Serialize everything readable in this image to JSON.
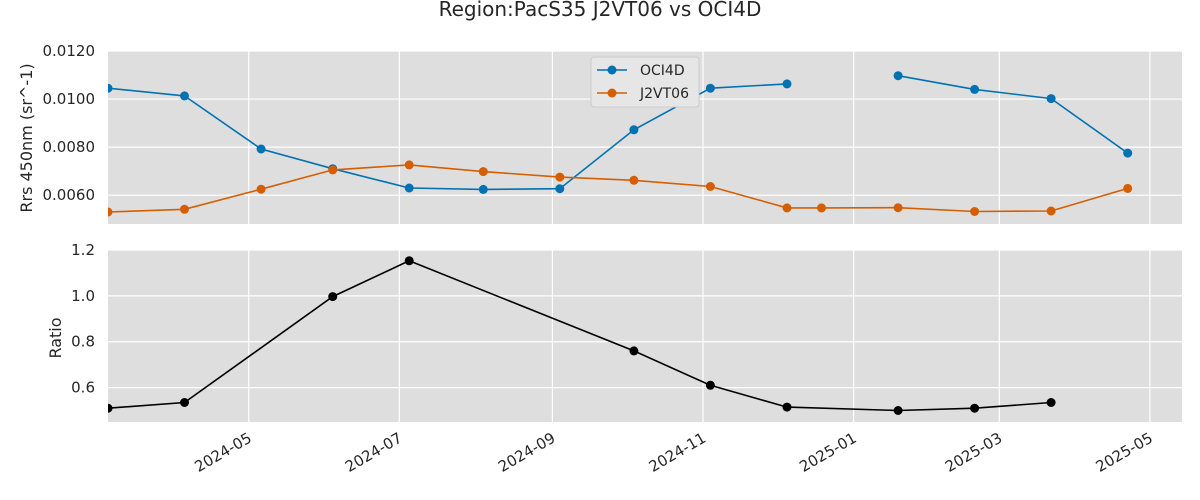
{
  "chart_data": {
    "type": "line",
    "title": "Region:PacS35 J2VT06 vs OCI4D",
    "x_tick_labels": [
      "2024-05",
      "2024-07",
      "2024-09",
      "2024-11",
      "2025-01",
      "2025-03",
      "2025-05"
    ],
    "panels": [
      {
        "ylabel": "Rrs 450nm (sr^-1)",
        "ylim": [
          0.0048,
          0.012
        ],
        "yticks": [
          "0.0060",
          "0.0080",
          "0.0100",
          "0.0120"
        ],
        "legend_position": "top-center",
        "series": [
          {
            "name": "OCI4D",
            "color": "#0072B2",
            "points": [
              [
                "2024-03-05",
                0.01045
              ],
              [
                "2024-04-05",
                0.01013
              ],
              [
                "2024-05-06",
                0.00792
              ],
              [
                "2024-06-04",
                0.0071
              ],
              [
                "2024-07-05",
                0.0063
              ],
              [
                "2024-08-04",
                0.00624
              ],
              [
                "2024-09-04",
                0.00627
              ],
              [
                "2024-10-04",
                0.00872
              ],
              [
                "2024-11-04",
                0.01045
              ],
              [
                "2024-12-05",
                0.01063
              ],
              [
                "2025-01-19",
                0.01097
              ],
              [
                "2025-02-19",
                0.0104
              ],
              [
                "2025-03-22",
                0.01002
              ],
              [
                "2025-04-22",
                0.00775
              ]
            ],
            "segment_breaks_after": [
              "2024-12-05"
            ]
          },
          {
            "name": "J2VT06",
            "color": "#D55E00",
            "points": [
              [
                "2024-03-05",
                0.0053
              ],
              [
                "2024-04-05",
                0.00541
              ],
              [
                "2024-05-06",
                0.00625
              ],
              [
                "2024-06-04",
                0.00705
              ],
              [
                "2024-07-05",
                0.00726
              ],
              [
                "2024-08-04",
                0.00698
              ],
              [
                "2024-09-04",
                0.00675
              ],
              [
                "2024-10-04",
                0.00662
              ],
              [
                "2024-11-04",
                0.00636
              ],
              [
                "2024-12-05",
                0.00547
              ],
              [
                "2024-12-19",
                0.00547
              ],
              [
                "2025-01-19",
                0.00548
              ],
              [
                "2025-02-19",
                0.00532
              ],
              [
                "2025-03-22",
                0.00534
              ],
              [
                "2025-04-22",
                0.00628
              ]
            ]
          }
        ]
      },
      {
        "ylabel": "Ratio",
        "ylim": [
          0.45,
          1.2
        ],
        "yticks": [
          "0.6",
          "0.8",
          "1.0",
          "1.2"
        ],
        "series": [
          {
            "name": "",
            "color": "#000000",
            "points": [
              [
                "2024-03-05",
                0.51
              ],
              [
                "2024-04-05",
                0.535
              ],
              [
                "2024-06-04",
                0.997
              ],
              [
                "2024-07-05",
                1.153
              ],
              [
                "2024-10-04",
                0.76
              ],
              [
                "2024-11-04",
                0.61
              ],
              [
                "2024-12-05",
                0.515
              ],
              [
                "2025-01-19",
                0.5
              ],
              [
                "2025-02-19",
                0.51
              ],
              [
                "2025-03-22",
                0.535
              ]
            ]
          }
        ]
      }
    ]
  }
}
